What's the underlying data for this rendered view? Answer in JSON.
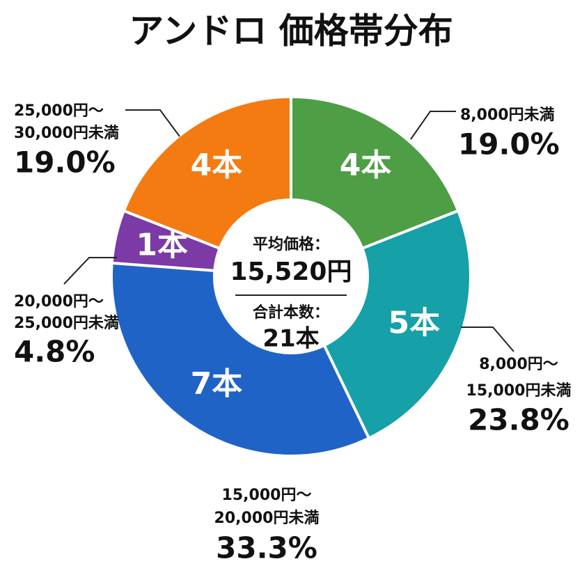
{
  "chart_data": {
    "type": "donut",
    "title": "アンドロ 価格帯分布",
    "categories": [
      [
        "8,000円未満"
      ],
      [
        "8,000円～",
        "15,000円未満"
      ],
      [
        "15,000円～",
        "20,000円未満"
      ],
      [
        "20,000円～",
        "25,000円未満"
      ],
      [
        "25,000円～",
        "30,000円未満"
      ]
    ],
    "values": [
      4,
      5,
      7,
      1,
      4
    ],
    "value_labels": [
      "4本",
      "5本",
      "7本",
      "1本",
      "4本"
    ],
    "percent_labels": [
      "19.0%",
      "23.8%",
      "33.3%",
      "4.8%",
      "19.0%"
    ],
    "colors": [
      "#4e9e45",
      "#16a0a8",
      "#1f63c6",
      "#7b3aa6",
      "#f47a12"
    ],
    "center": {
      "average_label": "平均価格：",
      "average": "15,520円",
      "total_label": "合計本数：",
      "total": "21本"
    }
  }
}
